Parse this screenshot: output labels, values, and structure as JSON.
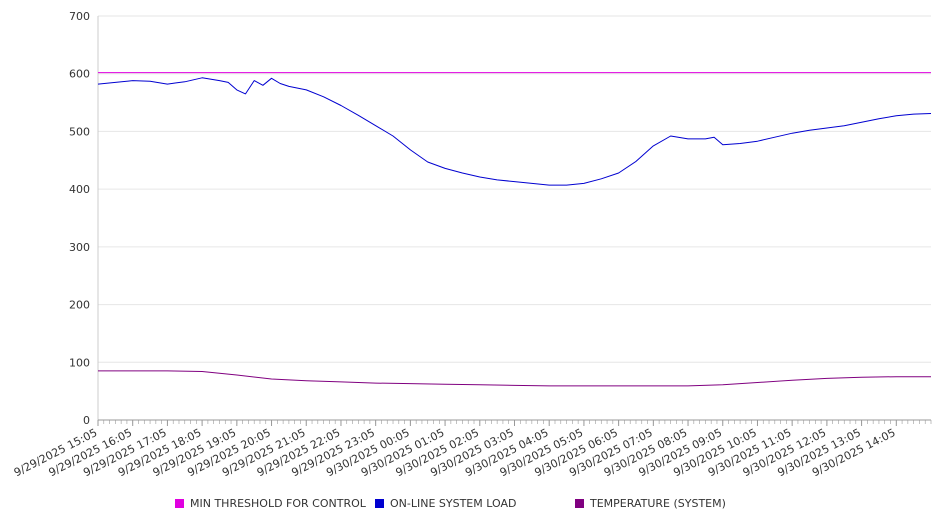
{
  "chart_data": {
    "type": "line",
    "title": "",
    "xlabel": "",
    "ylabel": "",
    "ylim": [
      0,
      700
    ],
    "yticks": [
      0,
      100,
      200,
      300,
      400,
      500,
      600,
      700
    ],
    "grid": true,
    "legend_position": "bottom",
    "x_tick_labels": [
      "9/29/2025 15:05",
      "9/29/2025 16:05",
      "9/29/2025 17:05",
      "9/29/2025 18:05",
      "9/29/2025 19:05",
      "9/29/2025 20:05",
      "9/29/2025 21:05",
      "9/29/2025 22:05",
      "9/29/2025 23:05",
      "9/30/2025 00:05",
      "9/30/2025 01:05",
      "9/30/2025 02:05",
      "9/30/2025 03:05",
      "9/30/2025 04:05",
      "9/30/2025 05:05",
      "9/30/2025 06:05",
      "9/30/2025 07:05",
      "9/30/2025 08:05",
      "9/30/2025 09:05",
      "9/30/2025 10:05",
      "9/30/2025 11:05",
      "9/30/2025 12:05",
      "9/30/2025 13:05",
      "9/30/2025 14:05"
    ],
    "x_start": "9/29/2025 15:05",
    "x_end": "9/30/2025 15:05",
    "series": [
      {
        "name": "MIN THRESHOLD FOR CONTROL",
        "color": "#e000e0",
        "x": [
          "9/29/2025 15:05",
          "9/30/2025 15:05"
        ],
        "values": [
          602,
          602
        ]
      },
      {
        "name": "ON-LINE SYSTEM LOAD",
        "color": "#0000d0",
        "x": [
          "9/29/2025 15:05",
          "9/29/2025 15:35",
          "9/29/2025 16:05",
          "9/29/2025 16:35",
          "9/29/2025 17:05",
          "9/29/2025 17:20",
          "9/29/2025 17:35",
          "9/29/2025 18:05",
          "9/29/2025 18:35",
          "9/29/2025 18:50",
          "9/29/2025 19:05",
          "9/29/2025 19:20",
          "9/29/2025 19:35",
          "9/29/2025 19:50",
          "9/29/2025 20:05",
          "9/29/2025 20:20",
          "9/29/2025 20:35",
          "9/29/2025 21:05",
          "9/29/2025 21:35",
          "9/29/2025 22:05",
          "9/29/2025 22:35",
          "9/29/2025 23:05",
          "9/29/2025 23:35",
          "9/30/2025 00:05",
          "9/30/2025 00:35",
          "9/30/2025 01:05",
          "9/30/2025 01:35",
          "9/30/2025 02:05",
          "9/30/2025 02:35",
          "9/30/2025 03:05",
          "9/30/2025 03:35",
          "9/30/2025 04:05",
          "9/30/2025 04:35",
          "9/30/2025 05:05",
          "9/30/2025 05:35",
          "9/30/2025 06:05",
          "9/30/2025 06:35",
          "9/30/2025 07:05",
          "9/30/2025 07:35",
          "9/30/2025 08:05",
          "9/30/2025 08:35",
          "9/30/2025 08:50",
          "9/30/2025 09:05",
          "9/30/2025 09:35",
          "9/30/2025 10:05",
          "9/30/2025 10:35",
          "9/30/2025 11:05",
          "9/30/2025 11:35",
          "9/30/2025 12:05",
          "9/30/2025 12:35",
          "9/30/2025 13:05",
          "9/30/2025 13:35",
          "9/30/2025 14:05",
          "9/30/2025 14:35",
          "9/30/2025 15:05"
        ],
        "values": [
          582,
          585,
          588,
          587,
          582,
          584,
          586,
          593,
          588,
          585,
          572,
          565,
          588,
          580,
          592,
          583,
          578,
          572,
          560,
          545,
          528,
          510,
          492,
          468,
          447,
          436,
          428,
          421,
          416,
          413,
          410,
          407,
          407,
          410,
          418,
          428,
          448,
          475,
          492,
          487,
          487,
          490,
          477,
          479,
          483,
          490,
          497,
          502,
          506,
          510,
          516,
          522,
          527,
          530,
          531
        ]
      },
      {
        "name": "TEMPERATURE (SYSTEM)",
        "color": "#800080",
        "x": [
          "9/29/2025 15:05",
          "9/29/2025 16:05",
          "9/29/2025 17:05",
          "9/29/2025 18:05",
          "9/29/2025 19:05",
          "9/29/2025 20:05",
          "9/29/2025 21:05",
          "9/29/2025 22:05",
          "9/29/2025 23:05",
          "9/30/2025 00:05",
          "9/30/2025 01:05",
          "9/30/2025 02:05",
          "9/30/2025 03:05",
          "9/30/2025 04:05",
          "9/30/2025 05:05",
          "9/30/2025 06:05",
          "9/30/2025 07:05",
          "9/30/2025 08:05",
          "9/30/2025 09:05",
          "9/30/2025 10:05",
          "9/30/2025 11:05",
          "9/30/2025 12:05",
          "9/30/2025 13:05",
          "9/30/2025 14:05",
          "9/30/2025 15:05"
        ],
        "values": [
          85,
          85,
          85,
          84,
          78,
          71,
          68,
          66,
          64,
          63,
          62,
          61,
          60,
          59,
          59,
          59,
          59,
          59,
          61,
          65,
          69,
          72,
          74,
          75,
          75
        ]
      }
    ]
  }
}
